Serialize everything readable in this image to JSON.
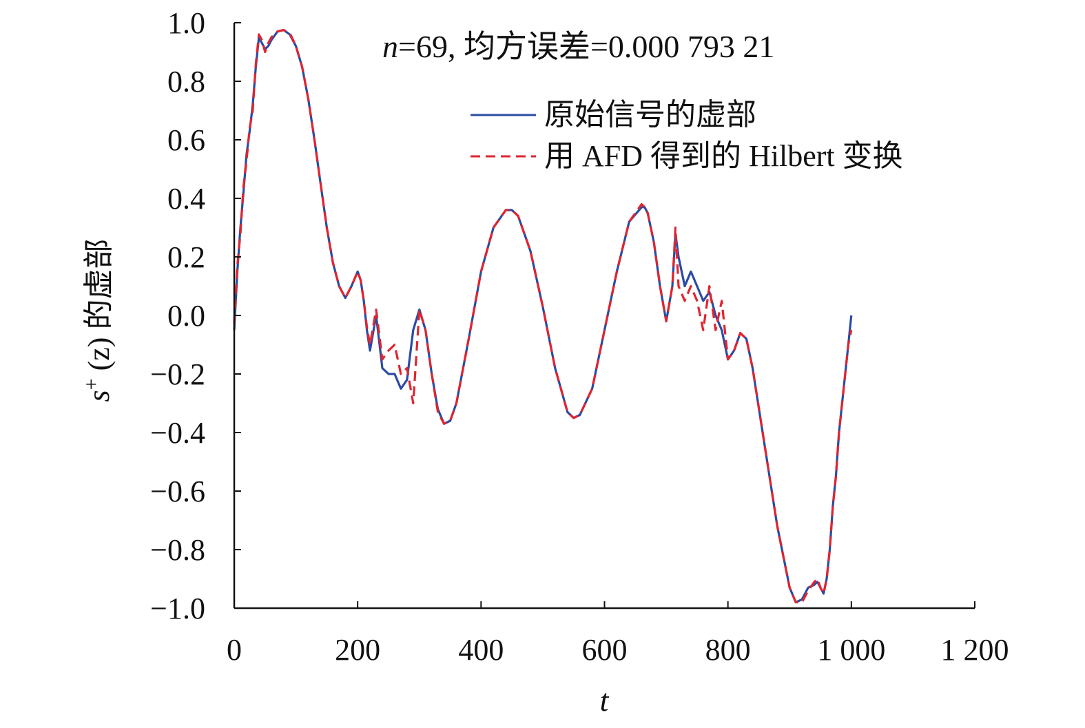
{
  "chart_data": {
    "type": "line",
    "title": "",
    "annotation": {
      "var": "n",
      "rest": "=69, 均方误差=0.000 793 21"
    },
    "xlabel": "t",
    "ylabel": {
      "base": "s",
      "sup": "+",
      "rest": " (z) 的虚部",
      "arg": "z"
    },
    "xlim": [
      0,
      1200
    ],
    "ylim": [
      -1.0,
      1.0
    ],
    "x_ticks": [
      0,
      200,
      400,
      600,
      800,
      1000,
      1200
    ],
    "x_tick_labels": [
      "0",
      "200",
      "400",
      "600",
      "800",
      "1 000",
      "1 200"
    ],
    "y_ticks": [
      1.0,
      0.8,
      0.6,
      0.4,
      0.2,
      0.0,
      -0.2,
      -0.4,
      -0.6,
      -0.8,
      -1.0
    ],
    "y_tick_labels": [
      "1.0",
      "0.8",
      "0.6",
      "0.4",
      "0.2",
      "0.0",
      "−0.2",
      "−0.4",
      "−0.6",
      "−0.8",
      "−1.0"
    ],
    "grid": false,
    "legend_position": "top-right",
    "series": [
      {
        "name": "原始信号的虚部",
        "color": "#2b4ba3",
        "style": "solid",
        "x": [
          0,
          5,
          10,
          15,
          20,
          25,
          30,
          35,
          40,
          45,
          50,
          55,
          60,
          70,
          80,
          90,
          100,
          110,
          120,
          130,
          140,
          150,
          160,
          170,
          180,
          190,
          200,
          205,
          210,
          215,
          220,
          230,
          240,
          250,
          260,
          270,
          280,
          290,
          300,
          310,
          320,
          330,
          340,
          350,
          360,
          380,
          400,
          420,
          440,
          450,
          460,
          480,
          500,
          520,
          540,
          550,
          560,
          580,
          600,
          620,
          640,
          660,
          665,
          670,
          680,
          690,
          700,
          710,
          715,
          720,
          730,
          740,
          750,
          760,
          770,
          780,
          790,
          800,
          810,
          820,
          830,
          840,
          860,
          880,
          900,
          910,
          920,
          930,
          940,
          945,
          950,
          955,
          960,
          965,
          970,
          975,
          980,
          985,
          990,
          995,
          1000
        ],
        "y": [
          -0.05,
          0.15,
          0.3,
          0.42,
          0.55,
          0.63,
          0.72,
          0.85,
          0.95,
          0.93,
          0.91,
          0.92,
          0.94,
          0.97,
          0.975,
          0.96,
          0.92,
          0.85,
          0.74,
          0.6,
          0.45,
          0.3,
          0.18,
          0.1,
          0.06,
          0.1,
          0.15,
          0.12,
          0.05,
          -0.05,
          -0.12,
          0.0,
          -0.18,
          -0.2,
          -0.2,
          -0.25,
          -0.22,
          -0.05,
          0.02,
          -0.05,
          -0.2,
          -0.32,
          -0.37,
          -0.36,
          -0.3,
          -0.08,
          0.15,
          0.3,
          0.36,
          0.36,
          0.34,
          0.22,
          0.03,
          -0.18,
          -0.33,
          -0.35,
          -0.34,
          -0.25,
          -0.05,
          0.15,
          0.32,
          0.37,
          0.37,
          0.35,
          0.25,
          0.1,
          -0.02,
          0.1,
          0.28,
          0.2,
          0.1,
          0.15,
          0.1,
          0.05,
          0.08,
          0.0,
          -0.05,
          -0.15,
          -0.12,
          -0.06,
          -0.08,
          -0.18,
          -0.45,
          -0.72,
          -0.93,
          -0.98,
          -0.97,
          -0.93,
          -0.92,
          -0.91,
          -0.93,
          -0.95,
          -0.9,
          -0.8,
          -0.65,
          -0.55,
          -0.4,
          -0.3,
          -0.2,
          -0.1,
          0.0
        ]
      },
      {
        "name": "用 AFD 得到的 Hilbert 变换",
        "color": "#e02530",
        "style": "dashed",
        "x": [
          0,
          5,
          10,
          15,
          20,
          25,
          30,
          35,
          40,
          45,
          50,
          55,
          60,
          70,
          80,
          90,
          100,
          110,
          120,
          130,
          140,
          150,
          160,
          170,
          180,
          190,
          200,
          205,
          210,
          215,
          220,
          230,
          240,
          250,
          260,
          270,
          280,
          290,
          300,
          310,
          320,
          330,
          340,
          350,
          360,
          380,
          400,
          420,
          440,
          450,
          460,
          480,
          500,
          520,
          540,
          550,
          560,
          580,
          600,
          620,
          640,
          660,
          665,
          670,
          680,
          690,
          700,
          710,
          715,
          720,
          730,
          740,
          750,
          760,
          770,
          780,
          790,
          800,
          810,
          820,
          830,
          840,
          860,
          880,
          900,
          910,
          920,
          930,
          940,
          945,
          950,
          955,
          960,
          965,
          970,
          975,
          980,
          985,
          990,
          995,
          1000
        ],
        "y": [
          -0.03,
          0.17,
          0.28,
          0.44,
          0.53,
          0.64,
          0.7,
          0.86,
          0.96,
          0.94,
          0.9,
          0.93,
          0.95,
          0.97,
          0.975,
          0.965,
          0.92,
          0.85,
          0.74,
          0.6,
          0.45,
          0.3,
          0.18,
          0.1,
          0.06,
          0.1,
          0.15,
          0.12,
          0.05,
          -0.04,
          -0.1,
          0.02,
          -0.15,
          -0.12,
          -0.1,
          -0.2,
          -0.18,
          -0.3,
          0.02,
          -0.05,
          -0.2,
          -0.33,
          -0.37,
          -0.36,
          -0.3,
          -0.08,
          0.15,
          0.3,
          0.36,
          0.36,
          0.34,
          0.22,
          0.03,
          -0.18,
          -0.33,
          -0.35,
          -0.34,
          -0.25,
          -0.05,
          0.15,
          0.32,
          0.38,
          0.37,
          0.35,
          0.25,
          0.1,
          -0.02,
          0.1,
          0.3,
          0.1,
          0.05,
          0.1,
          0.05,
          -0.05,
          0.1,
          -0.05,
          0.05,
          -0.15,
          -0.12,
          -0.06,
          -0.08,
          -0.18,
          -0.45,
          -0.72,
          -0.93,
          -0.98,
          -0.98,
          -0.94,
          -0.91,
          -0.9,
          -0.93,
          -0.95,
          -0.9,
          -0.8,
          -0.65,
          -0.55,
          -0.4,
          -0.3,
          -0.2,
          -0.1,
          -0.05
        ]
      }
    ]
  }
}
